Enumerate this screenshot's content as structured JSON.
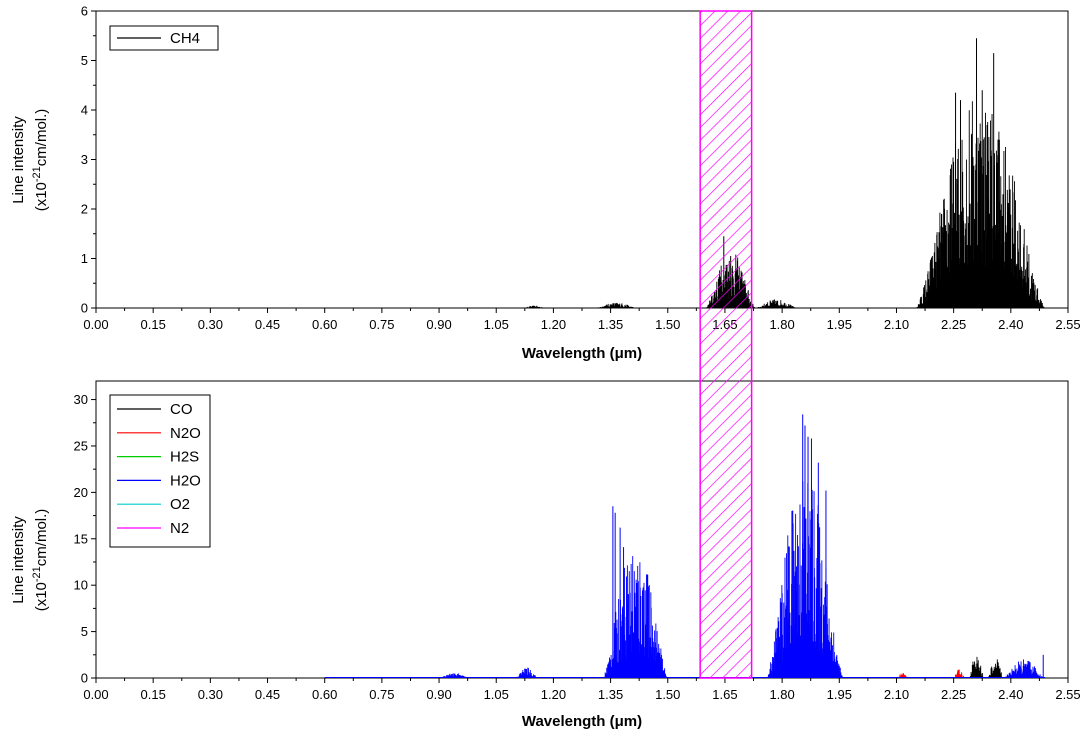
{
  "chart_data": [
    {
      "type": "line",
      "xlabel": "Wavelength (μm)",
      "ylabel_line1": "Line intensity",
      "ylabel_line2_prefix": "(x10",
      "ylabel_exponent": "-21",
      "ylabel_line2_suffix": "cm/mol.)",
      "xlim": [
        0,
        2.55
      ],
      "ylim": [
        0,
        6
      ],
      "xticks": [
        "0.00",
        "0.15",
        "0.30",
        "0.45",
        "0.60",
        "0.75",
        "0.90",
        "1.05",
        "1.20",
        "1.35",
        "1.50",
        "1.65",
        "1.80",
        "1.95",
        "2.10",
        "2.25",
        "2.40",
        "2.55"
      ],
      "yticks": [
        "0",
        "1",
        "2",
        "3",
        "4",
        "5",
        "6"
      ],
      "legend_position": "top-left",
      "series": [
        {
          "name": "CH4",
          "color": "#000000",
          "bands": [
            {
              "x0": 1.12,
              "x1": 1.18,
              "peak": 0.06
            },
            {
              "x0": 1.31,
              "x1": 1.42,
              "peak": 0.14
            },
            {
              "x0": 1.6,
              "x1": 1.73,
              "peak": 1.45
            },
            {
              "x0": 1.73,
              "x1": 1.84,
              "peak": 0.22
            },
            {
              "x0": 2.15,
              "x1": 2.49,
              "peak": 5.45
            }
          ],
          "peaks": [
            {
              "x": 1.647,
              "y": 1.45
            },
            {
              "x": 1.665,
              "y": 1.05
            },
            {
              "x": 1.68,
              "y": 0.8
            },
            {
              "x": 2.255,
              "y": 4.35
            },
            {
              "x": 2.268,
              "y": 4.2
            },
            {
              "x": 2.31,
              "y": 5.45
            },
            {
              "x": 2.325,
              "y": 4.4
            },
            {
              "x": 2.355,
              "y": 5.15
            },
            {
              "x": 2.37,
              "y": 3.4
            }
          ]
        }
      ]
    },
    {
      "type": "line",
      "xlabel": "Wavelength (μm)",
      "ylabel_line1": "Line intensity",
      "ylabel_line2_prefix": "(x10",
      "ylabel_exponent": "-21",
      "ylabel_line2_suffix": "cm/mol.)",
      "xlim": [
        0,
        2.55
      ],
      "ylim": [
        0,
        32
      ],
      "xticks": [
        "0.00",
        "0.15",
        "0.30",
        "0.45",
        "0.60",
        "0.75",
        "0.90",
        "1.05",
        "1.20",
        "1.35",
        "1.50",
        "1.65",
        "1.80",
        "1.95",
        "2.10",
        "2.25",
        "2.40",
        "2.55"
      ],
      "yticks": [
        "0",
        "5",
        "10",
        "15",
        "20",
        "25",
        "30"
      ],
      "legend_position": "top-left",
      "series": [
        {
          "name": "CO",
          "color": "#000000",
          "bands": [
            {
              "x0": 2.29,
              "x1": 2.33,
              "peak": 3.4
            },
            {
              "x0": 2.34,
              "x1": 2.38,
              "peak": 2.9
            }
          ],
          "peaks": []
        },
        {
          "name": "N2O",
          "color": "#ff0000",
          "bands": [
            {
              "x0": 2.1,
              "x1": 2.13,
              "peak": 0.7
            },
            {
              "x0": 2.25,
              "x1": 2.28,
              "peak": 1.2
            }
          ],
          "peaks": []
        },
        {
          "name": "H2S",
          "color": "#00cc00",
          "bands": [],
          "peaks": []
        },
        {
          "name": "H2O",
          "color": "#0000ff",
          "bands": [
            {
              "x0": 0.9,
              "x1": 0.98,
              "peak": 0.7
            },
            {
              "x0": 1.1,
              "x1": 1.16,
              "peak": 1.4
            },
            {
              "x0": 1.33,
              "x1": 1.5,
              "peak": 18.5
            },
            {
              "x0": 1.76,
              "x1": 1.96,
              "peak": 28.4
            },
            {
              "x0": 2.38,
              "x1": 2.49,
              "peak": 2.5
            }
          ],
          "peaks": [
            {
              "x": 1.356,
              "y": 18.5
            },
            {
              "x": 1.362,
              "y": 17.8
            },
            {
              "x": 1.375,
              "y": 16.2
            },
            {
              "x": 1.384,
              "y": 14.1
            },
            {
              "x": 1.854,
              "y": 28.4
            },
            {
              "x": 1.86,
              "y": 27.2
            },
            {
              "x": 1.868,
              "y": 26.0
            },
            {
              "x": 1.877,
              "y": 25.8
            },
            {
              "x": 1.895,
              "y": 23.2
            },
            {
              "x": 1.915,
              "y": 20.2
            },
            {
              "x": 2.485,
              "y": 2.5
            }
          ]
        },
        {
          "name": "O2",
          "color": "#00cccc",
          "bands": [],
          "peaks": []
        },
        {
          "name": "N2",
          "color": "#ff00ff",
          "bands": [],
          "peaks": []
        }
      ]
    }
  ],
  "highlight": {
    "x0": 1.585,
    "x1": 1.72,
    "color": "#ff00ff"
  }
}
